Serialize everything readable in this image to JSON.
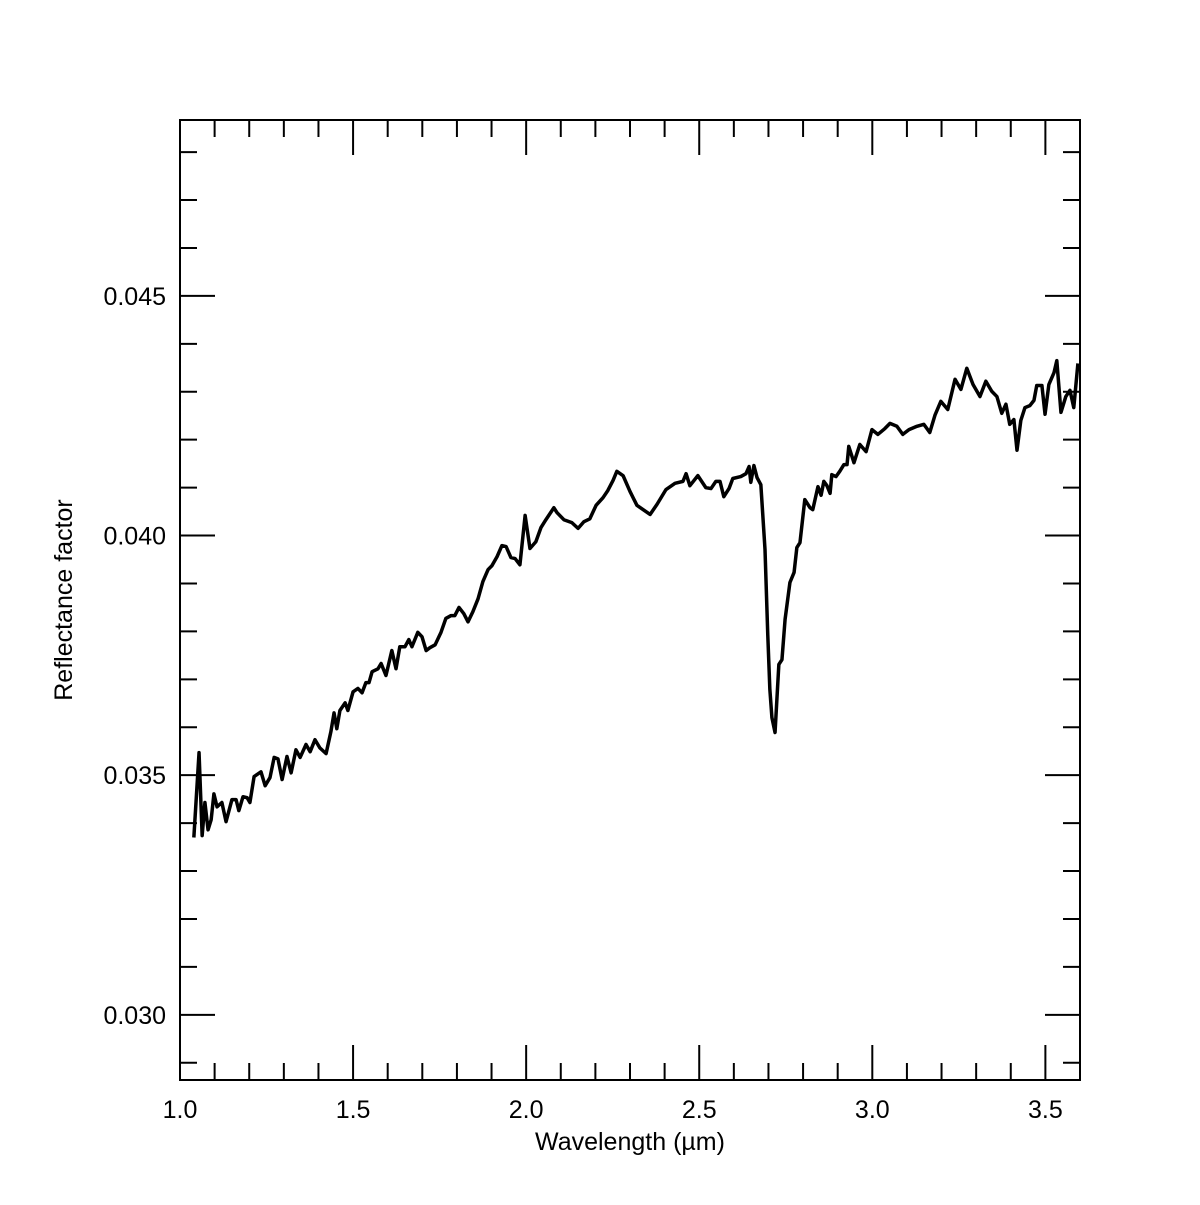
{
  "chart_data": {
    "type": "line",
    "xlabel": "Wavelength (µm)",
    "ylabel": "Reflectance factor",
    "xlim": [
      1.0,
      3.6
    ],
    "ylim": [
      0.02864,
      0.04867
    ],
    "xticks": [
      {
        "value": 1.0,
        "label": "1.0"
      },
      1.5,
      {
        "value": 2.0,
        "label": "2.0"
      },
      2.5,
      {
        "value": 3.0,
        "label": "3.0"
      },
      3.5
    ],
    "yticks": [
      {
        "value": 0.03,
        "label": "0.030"
      },
      0.035,
      {
        "value": 0.04,
        "label": "0.040"
      },
      0.045
    ],
    "xminor_ticks": [
      1.1,
      1.2,
      1.3,
      1.4,
      1.6,
      1.7,
      1.8,
      1.9,
      2.1,
      2.2,
      2.3,
      2.4,
      2.6,
      2.7,
      2.8,
      2.9,
      3.1,
      3.2,
      3.3,
      3.4
    ],
    "yminor_ticks": [
      0.029,
      0.031,
      0.032,
      0.033,
      0.034,
      0.036,
      0.037,
      0.038,
      0.039,
      0.041,
      0.042,
      0.043,
      0.044,
      0.046,
      0.047,
      0.048
    ],
    "grid": false,
    "series": [
      {
        "color": "#000000",
        "x": [
          1.04,
          1.055,
          1.064,
          1.072,
          1.081,
          1.09,
          1.098,
          1.107,
          1.121,
          1.133,
          1.15,
          1.162,
          1.17,
          1.182,
          1.194,
          1.202,
          1.214,
          1.234,
          1.246,
          1.26,
          1.272,
          1.283,
          1.295,
          1.309,
          1.321,
          1.335,
          1.347,
          1.364,
          1.376,
          1.39,
          1.404,
          1.422,
          1.436,
          1.445,
          1.453,
          1.462,
          1.477,
          1.485,
          1.5,
          1.514,
          1.526,
          1.537,
          1.546,
          1.555,
          1.572,
          1.581,
          1.595,
          1.612,
          1.624,
          1.635,
          1.65,
          1.661,
          1.67,
          1.687,
          1.699,
          1.711,
          1.722,
          1.737,
          1.754,
          1.768,
          1.783,
          1.794,
          1.806,
          1.82,
          1.832,
          1.846,
          1.861,
          1.875,
          1.89,
          1.901,
          1.916,
          1.93,
          1.942,
          1.956,
          1.968,
          1.982,
          1.997,
          2.011,
          2.028,
          2.043,
          2.057,
          2.08,
          2.089,
          2.109,
          2.132,
          2.15,
          2.167,
          2.184,
          2.202,
          2.222,
          2.236,
          2.251,
          2.262,
          2.28,
          2.3,
          2.32,
          2.358,
          2.378,
          2.404,
          2.43,
          2.453,
          2.462,
          2.473,
          2.496,
          2.519,
          2.534,
          2.548,
          2.56,
          2.571,
          2.586,
          2.597,
          2.62,
          2.635,
          2.644,
          2.649,
          2.658,
          2.667,
          2.678,
          2.69,
          2.698,
          2.704,
          2.71,
          2.719,
          2.73,
          2.739,
          2.748,
          2.762,
          2.774,
          2.782,
          2.791,
          2.805,
          2.82,
          2.828,
          2.843,
          2.852,
          2.86,
          2.869,
          2.878,
          2.883,
          2.895,
          2.906,
          2.918,
          2.927,
          2.932,
          2.947,
          2.964,
          2.982,
          2.999,
          3.016,
          3.036,
          3.051,
          3.071,
          3.088,
          3.106,
          3.129,
          3.149,
          3.166,
          3.181,
          3.198,
          3.218,
          3.239,
          3.256,
          3.273,
          3.291,
          3.311,
          3.328,
          3.345,
          3.36,
          3.374,
          3.386,
          3.397,
          3.409,
          3.418,
          3.429,
          3.441,
          3.455,
          3.467,
          3.475,
          3.49,
          3.499,
          3.51,
          3.525,
          3.533,
          3.545,
          3.559,
          3.571,
          3.582,
          3.594
        ],
        "values": [
          0.0337,
          0.03547,
          0.03374,
          0.03443,
          0.03386,
          0.03407,
          0.03461,
          0.03434,
          0.03443,
          0.03403,
          0.03449,
          0.03449,
          0.03426,
          0.03455,
          0.03453,
          0.03443,
          0.03497,
          0.03507,
          0.03478,
          0.03495,
          0.03537,
          0.03534,
          0.03491,
          0.03539,
          0.03505,
          0.03553,
          0.03537,
          0.03564,
          0.03549,
          0.03574,
          0.03557,
          0.03545,
          0.03591,
          0.0363,
          0.03597,
          0.03635,
          0.03651,
          0.03635,
          0.03674,
          0.03681,
          0.03672,
          0.03693,
          0.03693,
          0.03716,
          0.03722,
          0.03733,
          0.03708,
          0.0376,
          0.03722,
          0.03768,
          0.03768,
          0.03783,
          0.03768,
          0.03798,
          0.03789,
          0.0376,
          0.03766,
          0.03772,
          0.03798,
          0.03827,
          0.03833,
          0.03833,
          0.0385,
          0.03837,
          0.0382,
          0.03841,
          0.03868,
          0.03904,
          0.03929,
          0.03937,
          0.03956,
          0.03979,
          0.03977,
          0.03954,
          0.03952,
          0.03939,
          0.04042,
          0.03973,
          0.03987,
          0.04017,
          0.04033,
          0.04058,
          0.04048,
          0.04033,
          0.04027,
          0.04015,
          0.04029,
          0.04035,
          0.04063,
          0.04079,
          0.04094,
          0.04115,
          0.04134,
          0.04125,
          0.04092,
          0.04063,
          0.04044,
          0.04065,
          0.04096,
          0.04109,
          0.04113,
          0.04129,
          0.04104,
          0.04125,
          0.041,
          0.04098,
          0.04113,
          0.04113,
          0.04081,
          0.04098,
          0.04119,
          0.04123,
          0.04129,
          0.04144,
          0.04111,
          0.04146,
          0.04121,
          0.04106,
          0.03971,
          0.03793,
          0.03679,
          0.0362,
          0.03589,
          0.03731,
          0.03741,
          0.03825,
          0.03902,
          0.03923,
          0.03975,
          0.03985,
          0.04075,
          0.04058,
          0.04054,
          0.04102,
          0.04084,
          0.04113,
          0.04104,
          0.04088,
          0.04127,
          0.04123,
          0.04134,
          0.04148,
          0.04148,
          0.04186,
          0.04152,
          0.0419,
          0.04175,
          0.04221,
          0.04211,
          0.04223,
          0.04234,
          0.04228,
          0.04211,
          0.04221,
          0.04228,
          0.04232,
          0.04215,
          0.04251,
          0.0428,
          0.04263,
          0.04326,
          0.04305,
          0.04349,
          0.04315,
          0.0429,
          0.04322,
          0.04301,
          0.0429,
          0.04255,
          0.04274,
          0.04232,
          0.04242,
          0.04178,
          0.0424,
          0.04267,
          0.04271,
          0.04282,
          0.04313,
          0.04313,
          0.04253,
          0.04315,
          0.0434,
          0.04365,
          0.04257,
          0.0429,
          0.04303,
          0.04267,
          0.04359
        ]
      }
    ]
  }
}
